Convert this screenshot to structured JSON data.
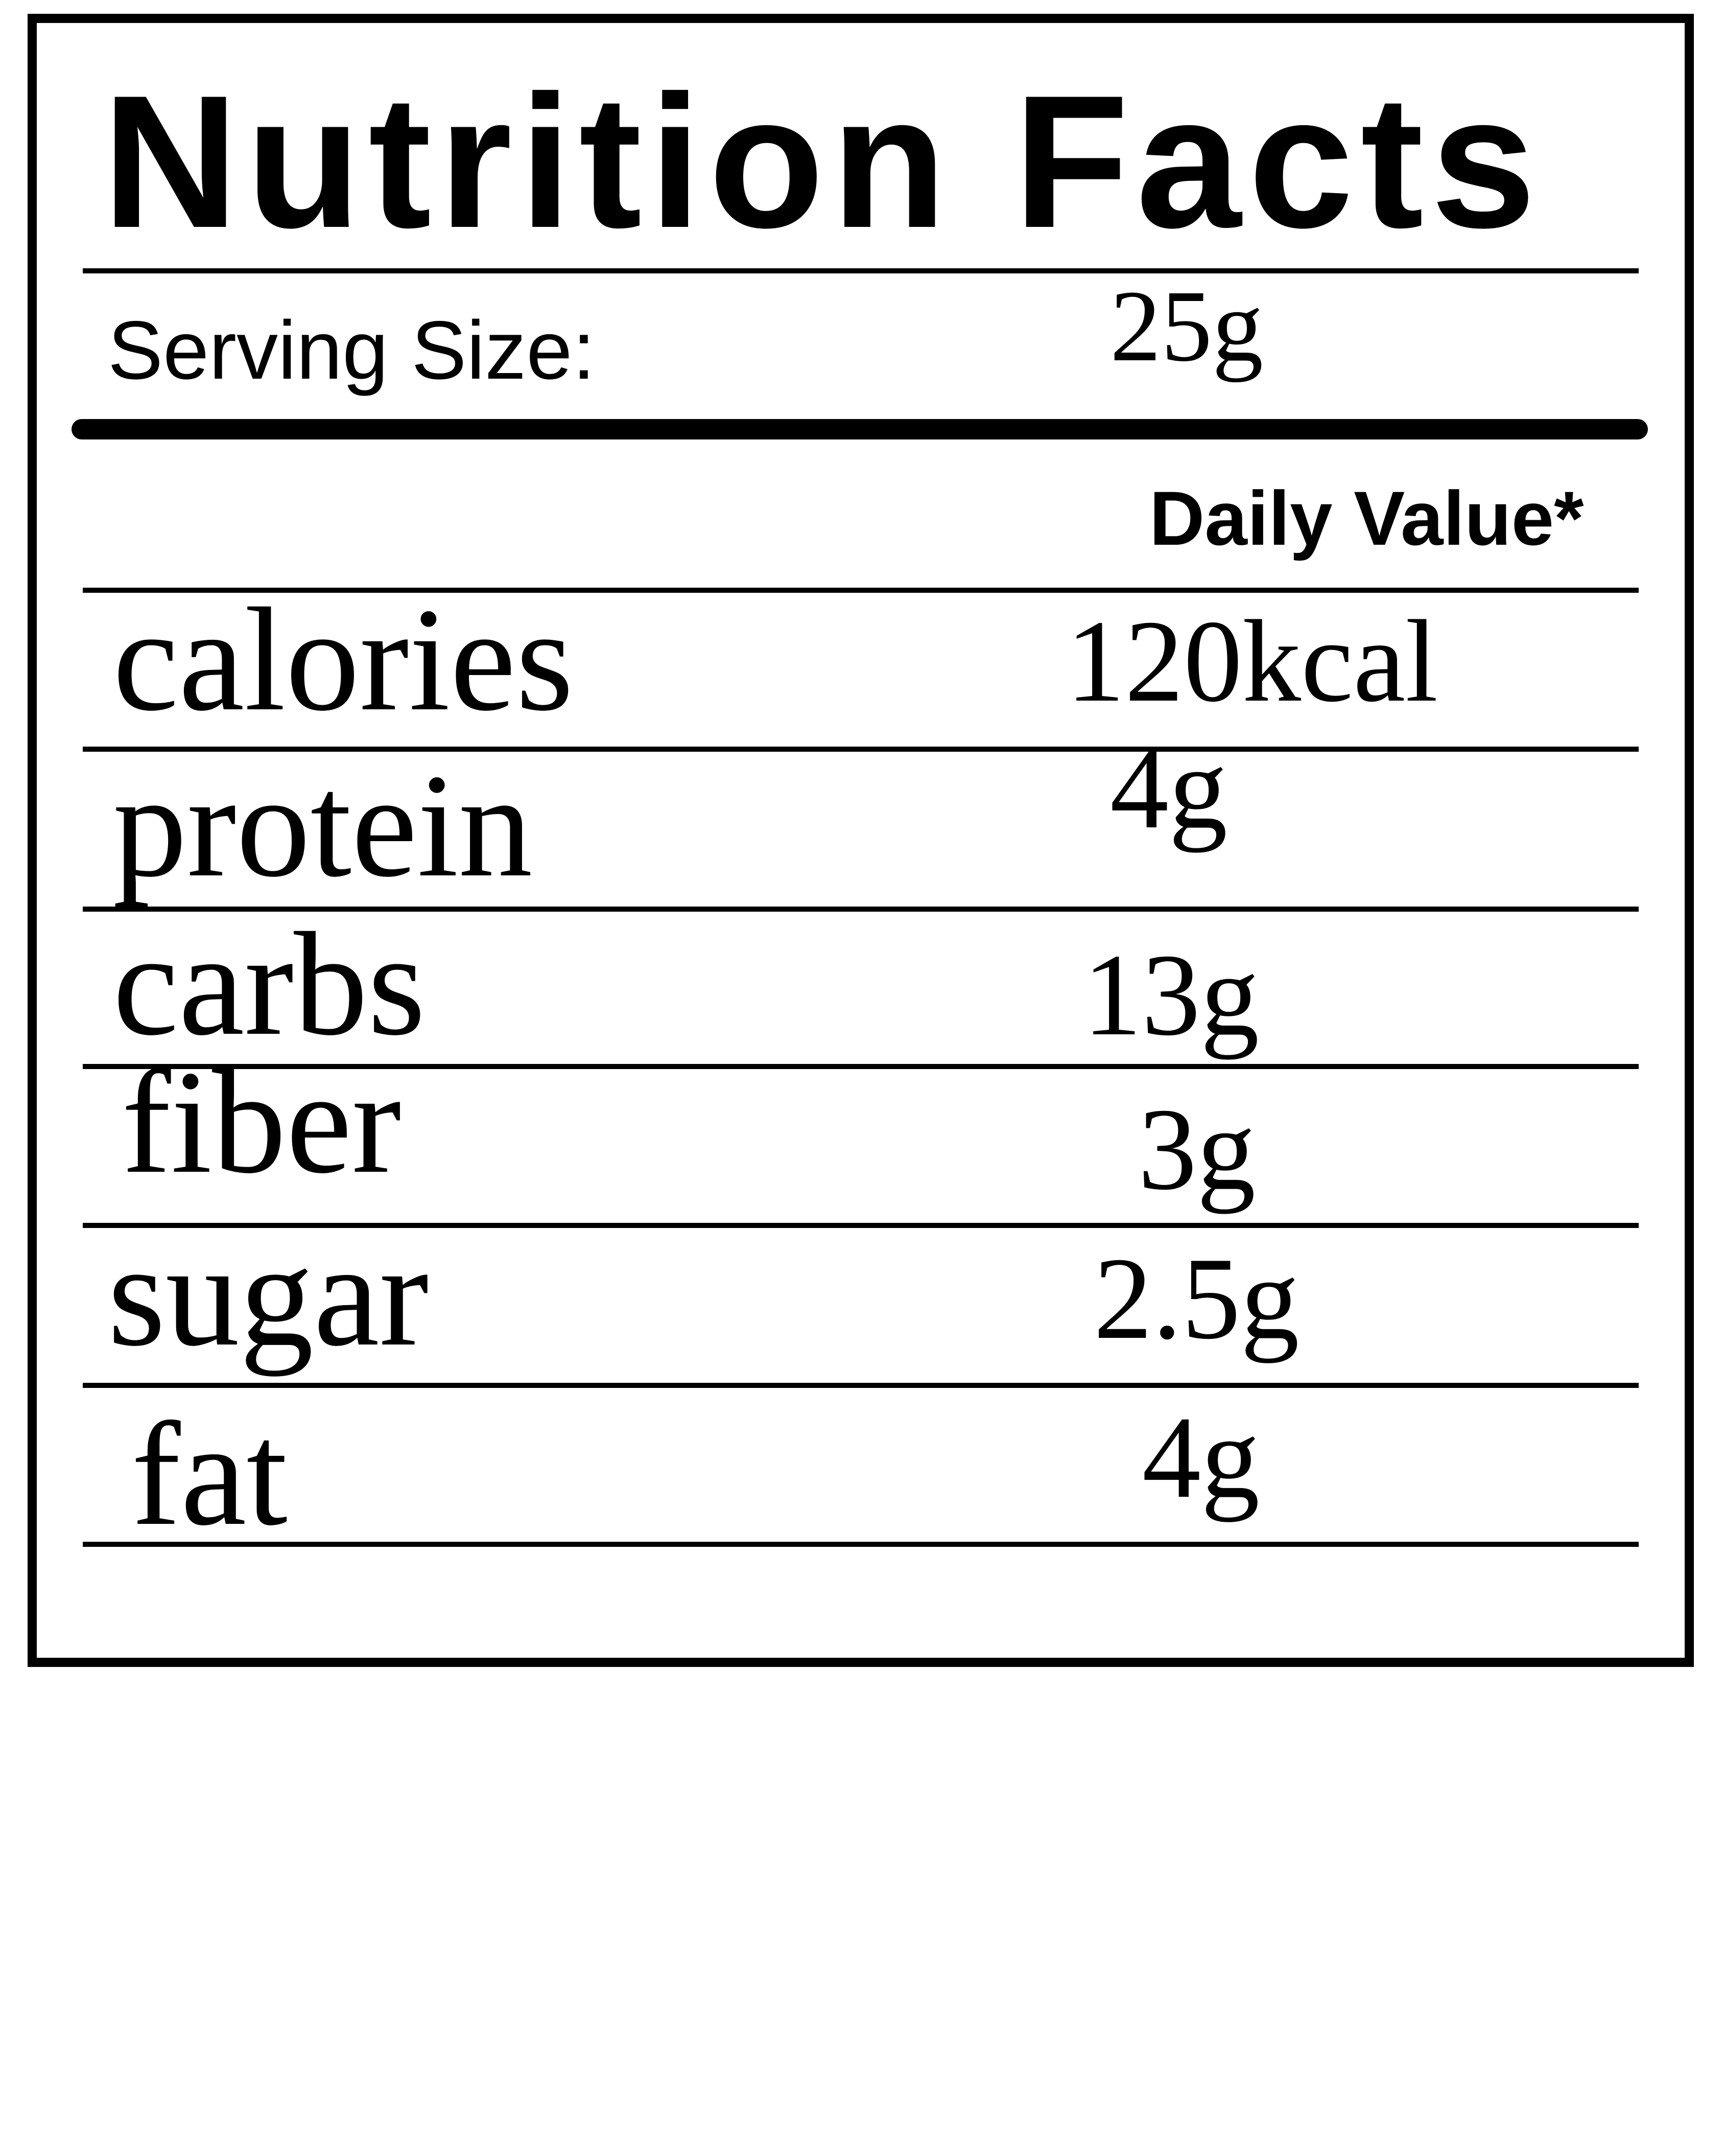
{
  "title": "Nutrition Facts",
  "serving": {
    "label": "Serving Size:",
    "value": "25g"
  },
  "daily_value_header": "Daily Value*",
  "nutrients": [
    {
      "label": "calories",
      "value": "120kcal"
    },
    {
      "label": "protein",
      "value": "4g"
    },
    {
      "label": "carbs",
      "value": "13g"
    },
    {
      "label": "fiber",
      "value": "3g"
    },
    {
      "label": "sugar",
      "value": "2.5g"
    },
    {
      "label": "fat",
      "value": "4g"
    }
  ]
}
